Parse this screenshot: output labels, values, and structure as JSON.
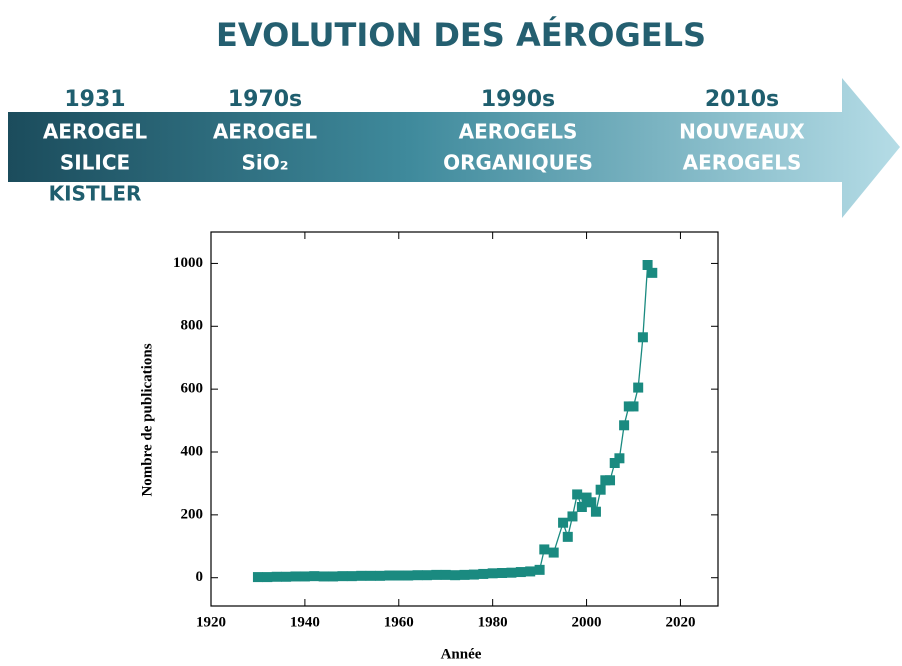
{
  "header": {
    "title": "EVOLUTION DES AÉROGELS"
  },
  "timeline": [
    {
      "year": "1931",
      "lines": [
        "AEROGEL",
        "SILICE",
        "KISTLER"
      ]
    },
    {
      "year": "1970s",
      "lines": [
        "AEROGEL",
        "SiO₂"
      ]
    },
    {
      "year": "1990s",
      "lines": [
        "AEROGELS",
        "ORGANIQUES"
      ]
    },
    {
      "year": "2010s",
      "lines": [
        "NOUVEAUX",
        "AEROGELS"
      ]
    }
  ],
  "chart_data": {
    "type": "line",
    "x_label": "Année",
    "y_label": "Nombre de publications",
    "color": "#1a8a80",
    "x": [
      1930,
      1932,
      1934,
      1936,
      1938,
      1940,
      1942,
      1944,
      1946,
      1948,
      1950,
      1952,
      1954,
      1956,
      1958,
      1960,
      1962,
      1964,
      1966,
      1968,
      1970,
      1972,
      1974,
      1976,
      1978,
      1980,
      1982,
      1984,
      1986,
      1988,
      1990,
      1991,
      1993,
      1995,
      1996,
      1997,
      1998,
      1999,
      2000,
      2001,
      2002,
      2003,
      2004,
      2005,
      2006,
      2007,
      2008,
      2009,
      2010,
      2011,
      2012,
      2013,
      2014
    ],
    "values": [
      2,
      2,
      3,
      3,
      4,
      4,
      5,
      4,
      4,
      5,
      5,
      6,
      6,
      6,
      7,
      7,
      7,
      8,
      8,
      9,
      9,
      8,
      9,
      10,
      12,
      14,
      15,
      16,
      18,
      20,
      25,
      90,
      80,
      175,
      130,
      195,
      265,
      225,
      255,
      240,
      210,
      280,
      310,
      310,
      365,
      380,
      485,
      545,
      545,
      605,
      765,
      995,
      970
    ],
    "xlim": [
      1920,
      2028
    ],
    "ylim": [
      -90,
      1100
    ],
    "xticks": [
      1920,
      1940,
      1960,
      1980,
      2000,
      2020
    ],
    "yticks": [
      0,
      200,
      400,
      600,
      800,
      1000
    ]
  }
}
